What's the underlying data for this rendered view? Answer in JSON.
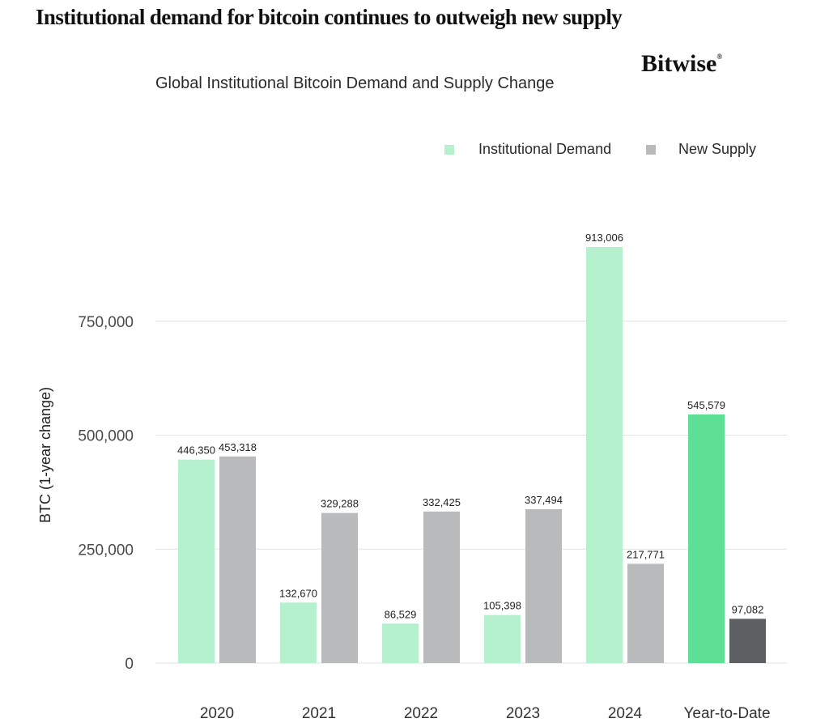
{
  "headline": "Institutional demand for bitcoin continues to outweigh new supply",
  "brand": {
    "name": "Bitwise",
    "mark": "®"
  },
  "colors": {
    "demand": "#b5f0cf",
    "supply": "#b9babb",
    "demand_ytd": "#5ddf96",
    "supply_ytd": "#5d6062",
    "grid": "#e2e2e2"
  },
  "chart_data": {
    "type": "bar",
    "title": "Global Institutional Bitcoin Demand and Supply Change",
    "xlabel": "",
    "ylabel": "BTC (1-year change)",
    "ylim": [
      0,
      913006
    ],
    "yticks": [
      0,
      250000,
      500000,
      750000
    ],
    "ytick_labels": [
      "0",
      "250,000",
      "500,000",
      "750,000"
    ],
    "grid": true,
    "legend_position": "top-right",
    "categories": [
      "2020",
      "2021",
      "2022",
      "2023",
      "2024",
      "Year-to-Date"
    ],
    "series": [
      {
        "name": "Institutional Demand",
        "values": [
          446350,
          132670,
          86529,
          105398,
          913006,
          545579
        ],
        "labels": [
          "446,350",
          "132,670",
          "86,529",
          "105,398",
          "913,006",
          "545,579"
        ]
      },
      {
        "name": "New Supply",
        "values": [
          453318,
          329288,
          332425,
          337494,
          217771,
          97082
        ],
        "labels": [
          "453,318",
          "329,288",
          "332,425",
          "337,494",
          "217,771",
          "97,082"
        ]
      }
    ]
  }
}
